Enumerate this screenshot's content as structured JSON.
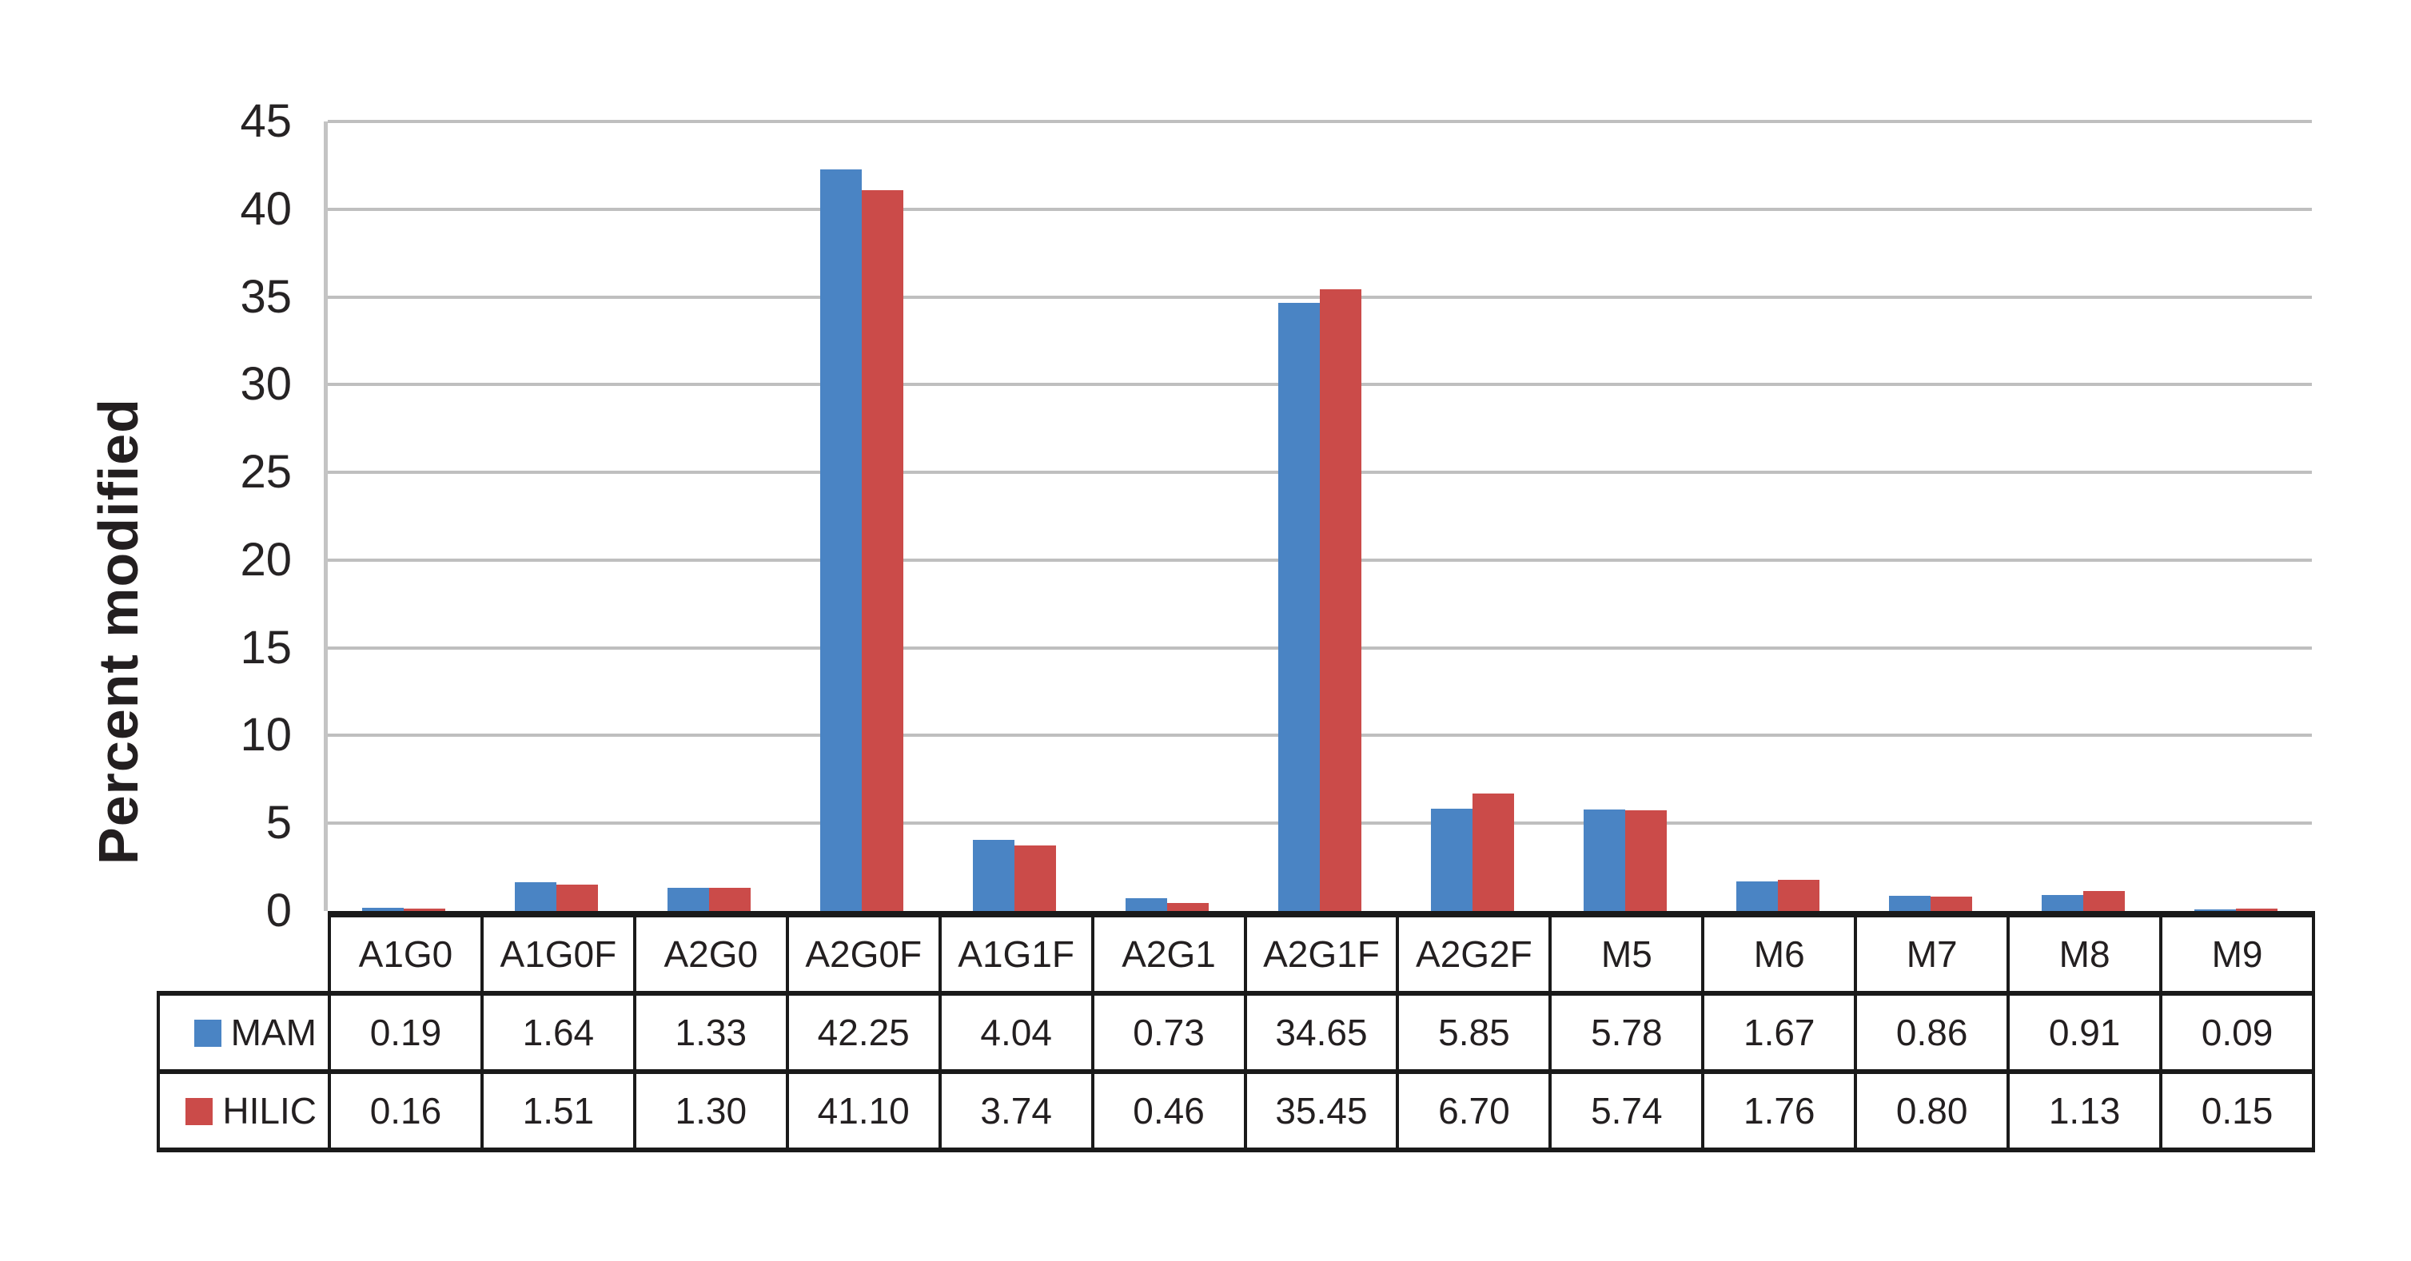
{
  "chart_data": {
    "type": "bar",
    "title": "",
    "ylabel": "Percent modified",
    "xlabel": "",
    "categories": [
      "A1G0",
      "A1G0F",
      "A2G0",
      "A2G0F",
      "A1G1F",
      "A2G1",
      "A2G1F",
      "A2G2F",
      "M5",
      "M6",
      "M7",
      "M8",
      "M9"
    ],
    "series": [
      {
        "name": "MAM",
        "color": "#4a84c4",
        "values": [
          0.19,
          1.64,
          1.33,
          42.25,
          4.04,
          0.73,
          34.65,
          5.85,
          5.78,
          1.67,
          0.86,
          0.91,
          0.09
        ]
      },
      {
        "name": "HILIC",
        "color": "#cb4b49",
        "values": [
          0.16,
          1.51,
          1.3,
          41.1,
          3.74,
          0.46,
          35.45,
          6.7,
          5.74,
          1.76,
          0.8,
          1.13,
          0.15
        ]
      }
    ],
    "ylim": [
      0,
      45
    ],
    "yticks": [
      0,
      5,
      10,
      15,
      20,
      25,
      30,
      35,
      40,
      45
    ],
    "grid": true,
    "legend_position": "table-left",
    "value_format_decimals": 2,
    "colors": {
      "gridline": "#bfbfbf",
      "axis_line": "#c4c4c4",
      "table_border": "#1a1a1a",
      "text": "#231f20",
      "background": "#ffffff"
    }
  }
}
